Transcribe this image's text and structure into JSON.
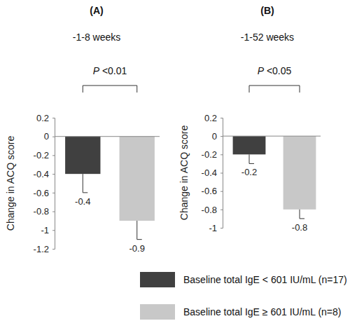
{
  "chart_data": [
    {
      "type": "bar",
      "title": "(A)",
      "subtitle": "-1-8 weeks",
      "annotation": "P <0.01",
      "y_label": "Change in ACQ score",
      "categories": [
        null
      ],
      "series": [
        {
          "name": "Baseline total IgE < 601 IU/mL (n=17)",
          "color": "#404040",
          "values": [
            -0.4
          ],
          "errors": [
            0.2
          ]
        },
        {
          "name": "Baseline total IgE ≥ 601 IU/mL (n=8)",
          "color": "#c8c8c8",
          "values": [
            -0.9
          ],
          "errors": [
            0.2
          ]
        }
      ],
      "ylim": [
        -1.2,
        0.2
      ],
      "yticks": [
        0.2,
        0,
        -0.2,
        -0.4,
        -0.6,
        -0.8,
        -1,
        -1.2
      ],
      "data_labels": true,
      "tick_labels": "y",
      "grid": false
    },
    {
      "type": "bar",
      "title": "(B)",
      "subtitle": "-1-52 weeks",
      "annotation": "P <0.05",
      "y_label": "Change in ACQ score",
      "categories": [
        null
      ],
      "series": [
        {
          "color": "#404040",
          "values": [
            -0.2
          ],
          "errors": [
            0.1
          ]
        },
        {
          "color": "#c8c8c8",
          "values": [
            -0.8
          ],
          "errors": [
            0.1
          ]
        }
      ],
      "ylim": [
        -1,
        0.2
      ],
      "yticks": [
        0.2,
        0,
        -0.2,
        -0.4,
        -0.6,
        -0.8,
        -1
      ],
      "data_labels": true,
      "tick_labels": "y",
      "grid": false
    }
  ]
}
